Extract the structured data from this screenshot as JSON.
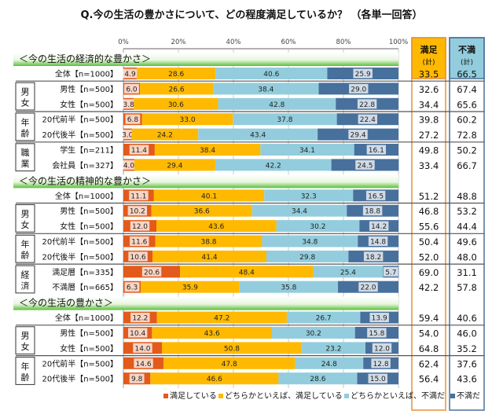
{
  "chart_data": {
    "type": "bar",
    "orientation": "horizontal",
    "stacked": true,
    "title": "Q.今の生活の豊かさについて、どの程度満足しているか？ （各単一回答）",
    "xlim": [
      0,
      100
    ],
    "x_ticks": [
      "0%",
      "20%",
      "40%",
      "60%",
      "80%",
      "100%"
    ],
    "grid": true,
    "legend_position": "bottom",
    "series_names": [
      "満足している",
      "どちらかといえば、満足している",
      "どちらかといえば、不満だ",
      "不満だ"
    ],
    "colors": [
      "#e35a1a",
      "#ffb900",
      "#93cddd",
      "#48709c"
    ],
    "total_headers": [
      {
        "label": "満足",
        "sub": "(計)"
      },
      {
        "label": "不満",
        "sub": "(計)"
      }
    ],
    "sections": [
      {
        "title": "＜今の生活の経済的な豊かさ＞",
        "groups": [
          {
            "label": "",
            "rows": [
              {
                "label": "全体【n=1000】",
                "values": [
                  4.9,
                  28.6,
                  40.6,
                  25.9
                ],
                "satisfied": "33.5",
                "dissatisfied": "66.5"
              }
            ]
          },
          {
            "label": "男女",
            "rows": [
              {
                "label": "男性【n=500】",
                "values": [
                  6.0,
                  26.6,
                  38.4,
                  29.0
                ],
                "satisfied": "32.6",
                "dissatisfied": "67.4"
              },
              {
                "label": "女性【n=500】",
                "values": [
                  3.8,
                  30.6,
                  42.8,
                  22.8
                ],
                "satisfied": "34.4",
                "dissatisfied": "65.6"
              }
            ]
          },
          {
            "label": "年齢",
            "rows": [
              {
                "label": "20代前半【n=500】",
                "values": [
                  6.8,
                  33.0,
                  37.8,
                  22.4
                ],
                "satisfied": "39.8",
                "dissatisfied": "60.2"
              },
              {
                "label": "20代後半【n=500】",
                "values": [
                  3.0,
                  24.2,
                  43.4,
                  29.4
                ],
                "satisfied": "27.2",
                "dissatisfied": "72.8"
              }
            ]
          },
          {
            "label": "職業",
            "rows": [
              {
                "label": "学生【n=211】",
                "values": [
                  11.4,
                  38.4,
                  34.1,
                  16.1
                ],
                "satisfied": "49.8",
                "dissatisfied": "50.2"
              },
              {
                "label": "会社員【n=327】",
                "values": [
                  4.0,
                  29.4,
                  42.2,
                  24.5
                ],
                "satisfied": "33.4",
                "dissatisfied": "66.7"
              }
            ]
          }
        ]
      },
      {
        "title": "＜今の生活の精神的な豊かさ＞",
        "groups": [
          {
            "label": "",
            "rows": [
              {
                "label": "全体【n=1000】",
                "values": [
                  11.1,
                  40.1,
                  32.3,
                  16.5
                ],
                "satisfied": "51.2",
                "dissatisfied": "48.8"
              }
            ]
          },
          {
            "label": "男女",
            "rows": [
              {
                "label": "男性【n=500】",
                "values": [
                  10.2,
                  36.6,
                  34.4,
                  18.8
                ],
                "satisfied": "46.8",
                "dissatisfied": "53.2"
              },
              {
                "label": "女性【n=500】",
                "values": [
                  12.0,
                  43.6,
                  30.2,
                  14.2
                ],
                "satisfied": "55.6",
                "dissatisfied": "44.4"
              }
            ]
          },
          {
            "label": "年齢",
            "rows": [
              {
                "label": "20代前半【n=500】",
                "values": [
                  11.6,
                  38.8,
                  34.8,
                  14.8
                ],
                "satisfied": "50.4",
                "dissatisfied": "49.6"
              },
              {
                "label": "20代後半【n=500】",
                "values": [
                  10.6,
                  41.4,
                  29.8,
                  18.2
                ],
                "satisfied": "52.0",
                "dissatisfied": "48.0"
              }
            ]
          },
          {
            "label": "経済",
            "rows": [
              {
                "label": "満足層【n=335】",
                "values": [
                  20.6,
                  48.4,
                  25.4,
                  5.7
                ],
                "satisfied": "69.0",
                "dissatisfied": "31.1"
              },
              {
                "label": "不満層【n=665】",
                "values": [
                  6.3,
                  35.9,
                  35.8,
                  22.0
                ],
                "satisfied": "42.2",
                "dissatisfied": "57.8"
              }
            ]
          }
        ]
      },
      {
        "title": "＜今の生活の豊かさ＞",
        "groups": [
          {
            "label": "",
            "rows": [
              {
                "label": "全体【n=1000】",
                "values": [
                  12.2,
                  47.2,
                  26.7,
                  13.9
                ],
                "satisfied": "59.4",
                "dissatisfied": "40.6"
              }
            ]
          },
          {
            "label": "男女",
            "rows": [
              {
                "label": "男性【n=500】",
                "values": [
                  10.4,
                  43.6,
                  30.2,
                  15.8
                ],
                "satisfied": "54.0",
                "dissatisfied": "46.0"
              },
              {
                "label": "女性【n=500】",
                "values": [
                  14.0,
                  50.8,
                  23.2,
                  12.0
                ],
                "satisfied": "64.8",
                "dissatisfied": "35.2"
              }
            ]
          },
          {
            "label": "年齢",
            "rows": [
              {
                "label": "20代前半【n=500】",
                "values": [
                  14.6,
                  47.8,
                  24.8,
                  12.8
                ],
                "satisfied": "62.4",
                "dissatisfied": "37.6"
              },
              {
                "label": "20代後半【n=500】",
                "values": [
                  9.8,
                  46.6,
                  28.6,
                  15.0
                ],
                "satisfied": "56.4",
                "dissatisfied": "43.6"
              }
            ]
          }
        ]
      }
    ]
  }
}
